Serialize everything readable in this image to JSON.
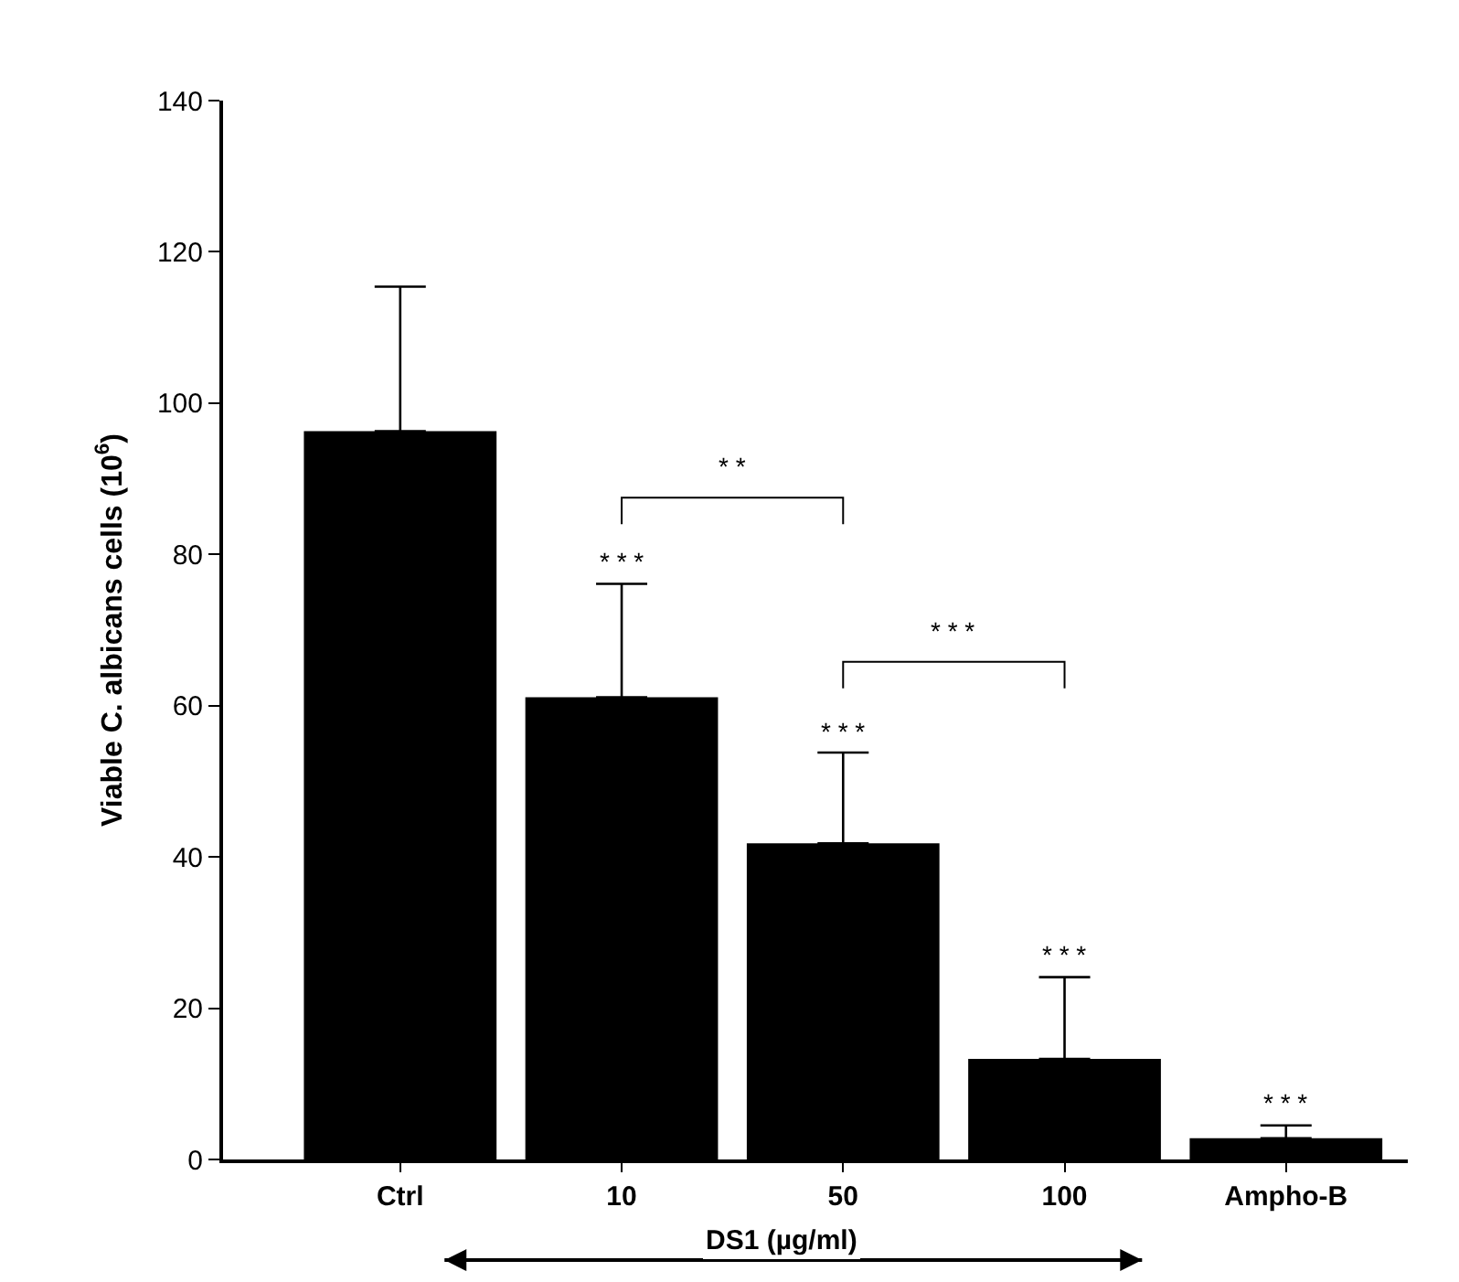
{
  "chart_data": {
    "type": "bar",
    "ylabel": "Viable C. albicans cells (10$^{6}$)",
    "categories": [
      "Ctrl",
      "10",
      "50",
      "100",
      "Ampho-B"
    ],
    "values": [
      96.3,
      61.1,
      41.8,
      13.3,
      2.8
    ],
    "errors": [
      19.1,
      15.0,
      12.0,
      10.8,
      1.7
    ],
    "color": "#000000",
    "ylim": [
      0,
      140
    ],
    "yticks": [
      0,
      20,
      40,
      60,
      80,
      100,
      120,
      140
    ],
    "annotations": [
      "* * *",
      "* * *",
      "* * *",
      "* * *",
      "* *",
      "* * *",
      "DS1 (µg/ml)"
    ]
  }
}
